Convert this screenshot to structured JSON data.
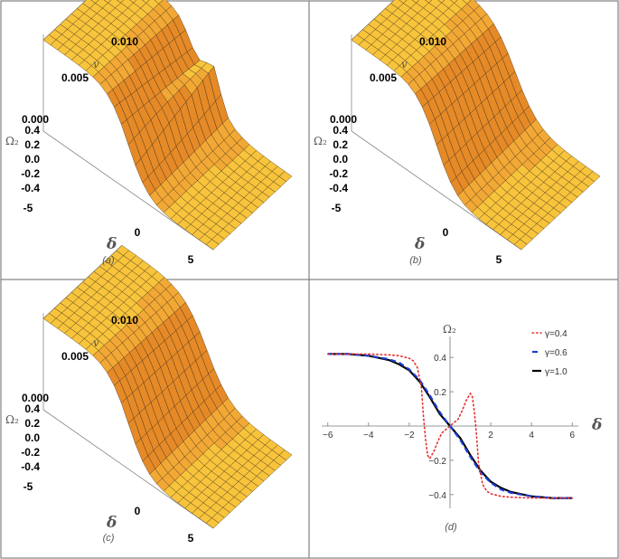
{
  "panels": [
    {
      "label": "(a)"
    },
    {
      "label": "(b)"
    },
    {
      "label": "(c)"
    },
    {
      "label": "(d)"
    }
  ],
  "surface_axes": {
    "v_label": "v",
    "v_ticks": [
      "0.000",
      "0.005",
      "0.010"
    ],
    "omega_label": "Ω₂",
    "omega_ticks": [
      "0.4",
      "0.2",
      "0.0",
      "-0.2",
      "-0.4"
    ],
    "delta_label": "δ",
    "delta_ticks": [
      "-5",
      "0",
      "5"
    ]
  },
  "colors": {
    "surface_light": "#f7c43c",
    "surface_mid": "#f2a835",
    "surface_dark": "#e58a27",
    "mesh": "#3b2a14",
    "gamma_04": "#e53030",
    "gamma_06": "#1a3fd6",
    "gamma_10": "#000000"
  },
  "chart_data": [
    {
      "type": "surface",
      "panel": "(a)",
      "x_axis": "δ",
      "xlim": [
        -6,
        6
      ],
      "x_ticks": [
        -5,
        0,
        5
      ],
      "y_axis": "v",
      "ylim": [
        0,
        0.01
      ],
      "y_ticks": [
        0.0,
        0.005,
        0.01
      ],
      "z_axis": "Ω₂",
      "zlim": [
        -0.45,
        0.45
      ],
      "z_ticks": [
        -0.4,
        -0.2,
        0.0,
        0.2,
        0.4
      ],
      "z_high": 0.42,
      "z_low": -0.42,
      "ridge_near_delta": 0
    },
    {
      "type": "surface",
      "panel": "(b)",
      "x_axis": "δ",
      "xlim": [
        -6,
        6
      ],
      "x_ticks": [
        -5,
        0,
        5
      ],
      "y_axis": "v",
      "ylim": [
        0,
        0.01
      ],
      "y_ticks": [
        0.0,
        0.005,
        0.01
      ],
      "z_axis": "Ω₂",
      "zlim": [
        -0.45,
        0.45
      ],
      "z_ticks": [
        -0.4,
        -0.2,
        0.0,
        0.2,
        0.4
      ],
      "z_high": 0.42,
      "z_low": -0.42
    },
    {
      "type": "surface",
      "panel": "(c)",
      "x_axis": "δ",
      "xlim": [
        -6,
        6
      ],
      "x_ticks": [
        -5,
        0,
        5
      ],
      "y_axis": "v",
      "ylim": [
        0,
        0.01
      ],
      "y_ticks": [
        0.0,
        0.005,
        0.01
      ],
      "z_axis": "Ω₂",
      "zlim": [
        -0.45,
        0.45
      ],
      "z_ticks": [
        -0.4,
        -0.2,
        0.0,
        0.2,
        0.4
      ],
      "z_high": 0.42,
      "z_low": -0.42
    },
    {
      "type": "line",
      "panel": "(d)",
      "xlabel": "δ",
      "ylabel": "Ω₂",
      "xlim": [
        -6.3,
        6.3
      ],
      "ylim": [
        -0.48,
        0.48
      ],
      "x_ticks": [
        -6,
        -4,
        -2,
        2,
        4,
        6
      ],
      "y_ticks": [
        0.4,
        0.2,
        -0.2,
        -0.4
      ],
      "legend_position": "top-right",
      "series": [
        {
          "name": "γ=0.4",
          "style": "dotted",
          "x": [
            -6,
            -5,
            -4,
            -3,
            -2.5,
            -2,
            -1.8,
            -1.6,
            -1.4,
            -1.3,
            -1.2,
            -1.1,
            -1.0,
            -0.8,
            -0.6,
            -0.4,
            -0.2,
            0,
            0.2,
            0.4,
            0.6,
            0.8,
            1.0,
            1.1,
            1.2,
            1.3,
            1.4,
            1.6,
            1.8,
            2,
            2.5,
            3,
            4,
            5,
            6
          ],
          "y": [
            0.42,
            0.42,
            0.42,
            0.415,
            0.41,
            0.395,
            0.38,
            0.34,
            0.22,
            0.05,
            -0.08,
            -0.17,
            -0.19,
            -0.15,
            -0.09,
            -0.04,
            -0.02,
            0.0,
            0.02,
            0.04,
            0.09,
            0.15,
            0.19,
            0.17,
            0.08,
            -0.05,
            -0.22,
            -0.34,
            -0.38,
            -0.395,
            -0.41,
            -0.415,
            -0.42,
            -0.42,
            -0.42
          ]
        },
        {
          "name": "γ=0.6",
          "style": "dashed",
          "x": [
            -6,
            -5,
            -4,
            -3,
            -2.5,
            -2,
            -1.5,
            -1,
            -0.5,
            0,
            0.5,
            1,
            1.5,
            2,
            2.5,
            3,
            4,
            5,
            6
          ],
          "y": [
            0.42,
            0.42,
            0.41,
            0.39,
            0.37,
            0.33,
            0.27,
            0.18,
            0.08,
            0.0,
            -0.08,
            -0.18,
            -0.27,
            -0.33,
            -0.37,
            -0.39,
            -0.41,
            -0.42,
            -0.42
          ]
        },
        {
          "name": "γ=1.0",
          "style": "solid",
          "x": [
            -6,
            -5,
            -4,
            -3,
            -2.5,
            -2,
            -1.5,
            -1,
            -0.5,
            0,
            0.5,
            1,
            1.5,
            2,
            2.5,
            3,
            4,
            5,
            6
          ],
          "y": [
            0.42,
            0.42,
            0.41,
            0.385,
            0.36,
            0.325,
            0.26,
            0.17,
            0.07,
            0.0,
            -0.07,
            -0.17,
            -0.26,
            -0.325,
            -0.36,
            -0.385,
            -0.41,
            -0.42,
            -0.42
          ]
        }
      ]
    }
  ]
}
